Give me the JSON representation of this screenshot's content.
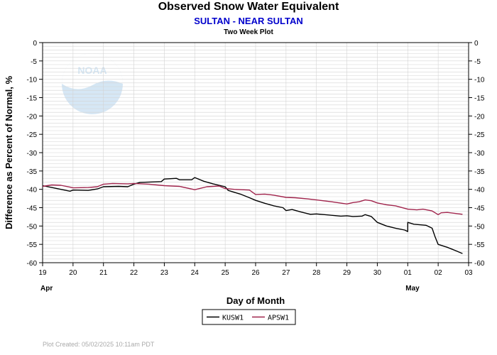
{
  "header": {
    "title": "Observed Snow Water Equivalent",
    "subtitle": "SULTAN - NEAR SULTAN",
    "subtitle2": "Two Week Plot"
  },
  "footer": {
    "created": "Plot Created: 05/02/2025 10:11am PDT"
  },
  "logo": {
    "text": "NOAA",
    "icon": "noaa-logo-watermark"
  },
  "colors": {
    "kusw1": "#000000",
    "apsw1": "#a0244c",
    "subtitle": "#0000cc",
    "grid": "#d3d3d3"
  },
  "chart_data": {
    "type": "line",
    "xlabel": "Day of Month",
    "ylabel": "Difference as Percent of Normal, %",
    "ylim": [
      -60,
      0
    ],
    "xlim": [
      19,
      33
    ],
    "x_tick_labels": [
      "19",
      "20",
      "21",
      "22",
      "23",
      "24",
      "25",
      "26",
      "27",
      "28",
      "29",
      "30",
      "01",
      "02",
      "03"
    ],
    "y_tick_labels": [
      "0",
      "-5",
      "-10",
      "-15",
      "-20",
      "-25",
      "-30",
      "-35",
      "-40",
      "-45",
      "-50",
      "-55",
      "-60"
    ],
    "month_labels": [
      {
        "label": "Apr",
        "day": 19
      },
      {
        "label": "May",
        "day": 31
      }
    ],
    "grid": true,
    "legend_position": "bottom-center",
    "series": [
      {
        "name": "KUSW1",
        "color": "#000000",
        "points": [
          [
            19.0,
            -39.0
          ],
          [
            19.3,
            -39.5
          ],
          [
            19.6,
            -40.0
          ],
          [
            19.9,
            -40.5
          ],
          [
            20.0,
            -40.2
          ],
          [
            20.5,
            -40.3
          ],
          [
            20.8,
            -39.9
          ],
          [
            21.0,
            -39.3
          ],
          [
            21.5,
            -39.2
          ],
          [
            21.8,
            -39.3
          ],
          [
            22.0,
            -38.6
          ],
          [
            22.2,
            -38.1
          ],
          [
            22.9,
            -37.9
          ],
          [
            23.0,
            -37.2
          ],
          [
            23.4,
            -37.0
          ],
          [
            23.5,
            -37.4
          ],
          [
            23.9,
            -37.4
          ],
          [
            24.0,
            -36.8
          ],
          [
            24.3,
            -37.8
          ],
          [
            24.6,
            -38.5
          ],
          [
            25.0,
            -39.3
          ],
          [
            25.1,
            -40.3
          ],
          [
            25.5,
            -41.3
          ],
          [
            25.8,
            -42.3
          ],
          [
            26.0,
            -43.0
          ],
          [
            26.3,
            -43.8
          ],
          [
            26.6,
            -44.5
          ],
          [
            26.9,
            -45.0
          ],
          [
            27.0,
            -45.8
          ],
          [
            27.2,
            -45.5
          ],
          [
            27.5,
            -46.2
          ],
          [
            27.8,
            -46.8
          ],
          [
            28.0,
            -46.7
          ],
          [
            28.4,
            -47.0
          ],
          [
            28.8,
            -47.3
          ],
          [
            29.0,
            -47.2
          ],
          [
            29.2,
            -47.4
          ],
          [
            29.5,
            -47.3
          ],
          [
            29.6,
            -46.9
          ],
          [
            29.8,
            -47.4
          ],
          [
            30.0,
            -49.0
          ],
          [
            30.3,
            -50.0
          ],
          [
            30.6,
            -50.6
          ],
          [
            30.9,
            -51.1
          ],
          [
            31.0,
            -51.5
          ],
          [
            31.0,
            -49.0
          ],
          [
            31.2,
            -49.5
          ],
          [
            31.6,
            -49.8
          ],
          [
            31.8,
            -50.6
          ],
          [
            31.9,
            -53.0
          ],
          [
            32.0,
            -55.0
          ],
          [
            32.3,
            -55.8
          ],
          [
            32.6,
            -56.8
          ],
          [
            32.8,
            -57.5
          ]
        ]
      },
      {
        "name": "APSW1",
        "color": "#a0244c",
        "points": [
          [
            19.0,
            -39.2
          ],
          [
            19.3,
            -38.8
          ],
          [
            19.6,
            -38.9
          ],
          [
            19.9,
            -39.4
          ],
          [
            20.0,
            -39.6
          ],
          [
            20.5,
            -39.5
          ],
          [
            20.8,
            -39.3
          ],
          [
            21.0,
            -38.6
          ],
          [
            21.3,
            -38.4
          ],
          [
            21.8,
            -38.5
          ],
          [
            22.0,
            -38.4
          ],
          [
            22.5,
            -38.6
          ],
          [
            23.0,
            -39.0
          ],
          [
            23.5,
            -39.2
          ],
          [
            24.0,
            -40.1
          ],
          [
            24.4,
            -39.3
          ],
          [
            24.8,
            -39.1
          ],
          [
            25.0,
            -39.8
          ],
          [
            25.3,
            -40.0
          ],
          [
            25.8,
            -40.2
          ],
          [
            26.0,
            -41.4
          ],
          [
            26.3,
            -41.3
          ],
          [
            26.6,
            -41.6
          ],
          [
            27.0,
            -42.2
          ],
          [
            27.3,
            -42.3
          ],
          [
            27.7,
            -42.6
          ],
          [
            28.0,
            -42.9
          ],
          [
            28.5,
            -43.4
          ],
          [
            29.0,
            -44.0
          ],
          [
            29.2,
            -43.6
          ],
          [
            29.4,
            -43.4
          ],
          [
            29.6,
            -42.9
          ],
          [
            29.8,
            -43.1
          ],
          [
            30.0,
            -43.7
          ],
          [
            30.3,
            -44.2
          ],
          [
            30.6,
            -44.5
          ],
          [
            31.0,
            -45.4
          ],
          [
            31.3,
            -45.6
          ],
          [
            31.5,
            -45.4
          ],
          [
            31.8,
            -45.9
          ],
          [
            32.0,
            -46.9
          ],
          [
            32.1,
            -46.4
          ],
          [
            32.3,
            -46.3
          ],
          [
            32.8,
            -46.8
          ]
        ]
      }
    ]
  }
}
